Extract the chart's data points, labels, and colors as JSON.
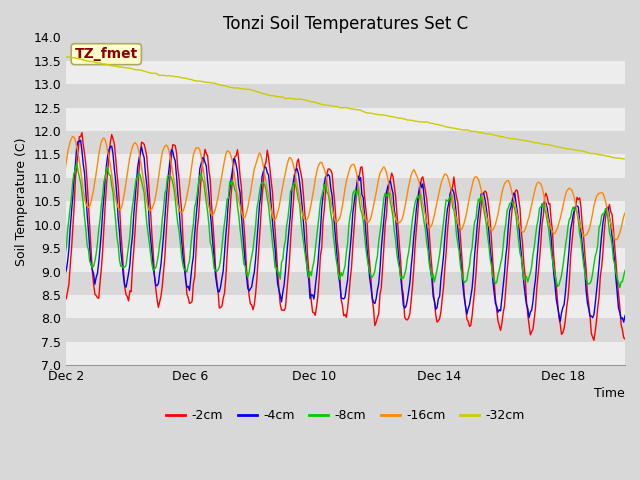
{
  "title": "Tonzi Soil Temperatures Set C",
  "ylabel": "Soil Temperature (C)",
  "xlabel": "Time",
  "ylim": [
    7.0,
    14.0
  ],
  "yticks": [
    7.0,
    7.5,
    8.0,
    8.5,
    9.0,
    9.5,
    10.0,
    10.5,
    11.0,
    11.5,
    12.0,
    12.5,
    13.0,
    13.5,
    14.0
  ],
  "xtick_labels": [
    "Dec 2",
    "Dec 6",
    "Dec 10",
    "Dec 14",
    "Dec 18"
  ],
  "xtick_positions": [
    1,
    5,
    9,
    13,
    17
  ],
  "n_days": 19,
  "samples_per_day": 24,
  "series_colors": [
    "#ff0000",
    "#0000ff",
    "#00cc00",
    "#ff8800",
    "#cccc00"
  ],
  "series_labels": [
    "-2cm",
    "-4cm",
    "-8cm",
    "-16cm",
    "-32cm"
  ],
  "bg_color": "#d8d8d8",
  "grid_stripe_color": "#e8e8e8",
  "title_fontsize": 12,
  "label_fontsize": 9,
  "tick_fontsize": 9,
  "legend_fontsize": 9,
  "annotation_text": "TZ_fmet",
  "annotation_color": "#8b0000",
  "annotation_bg": "#ffffcc",
  "annotation_border": "#aaaa66"
}
